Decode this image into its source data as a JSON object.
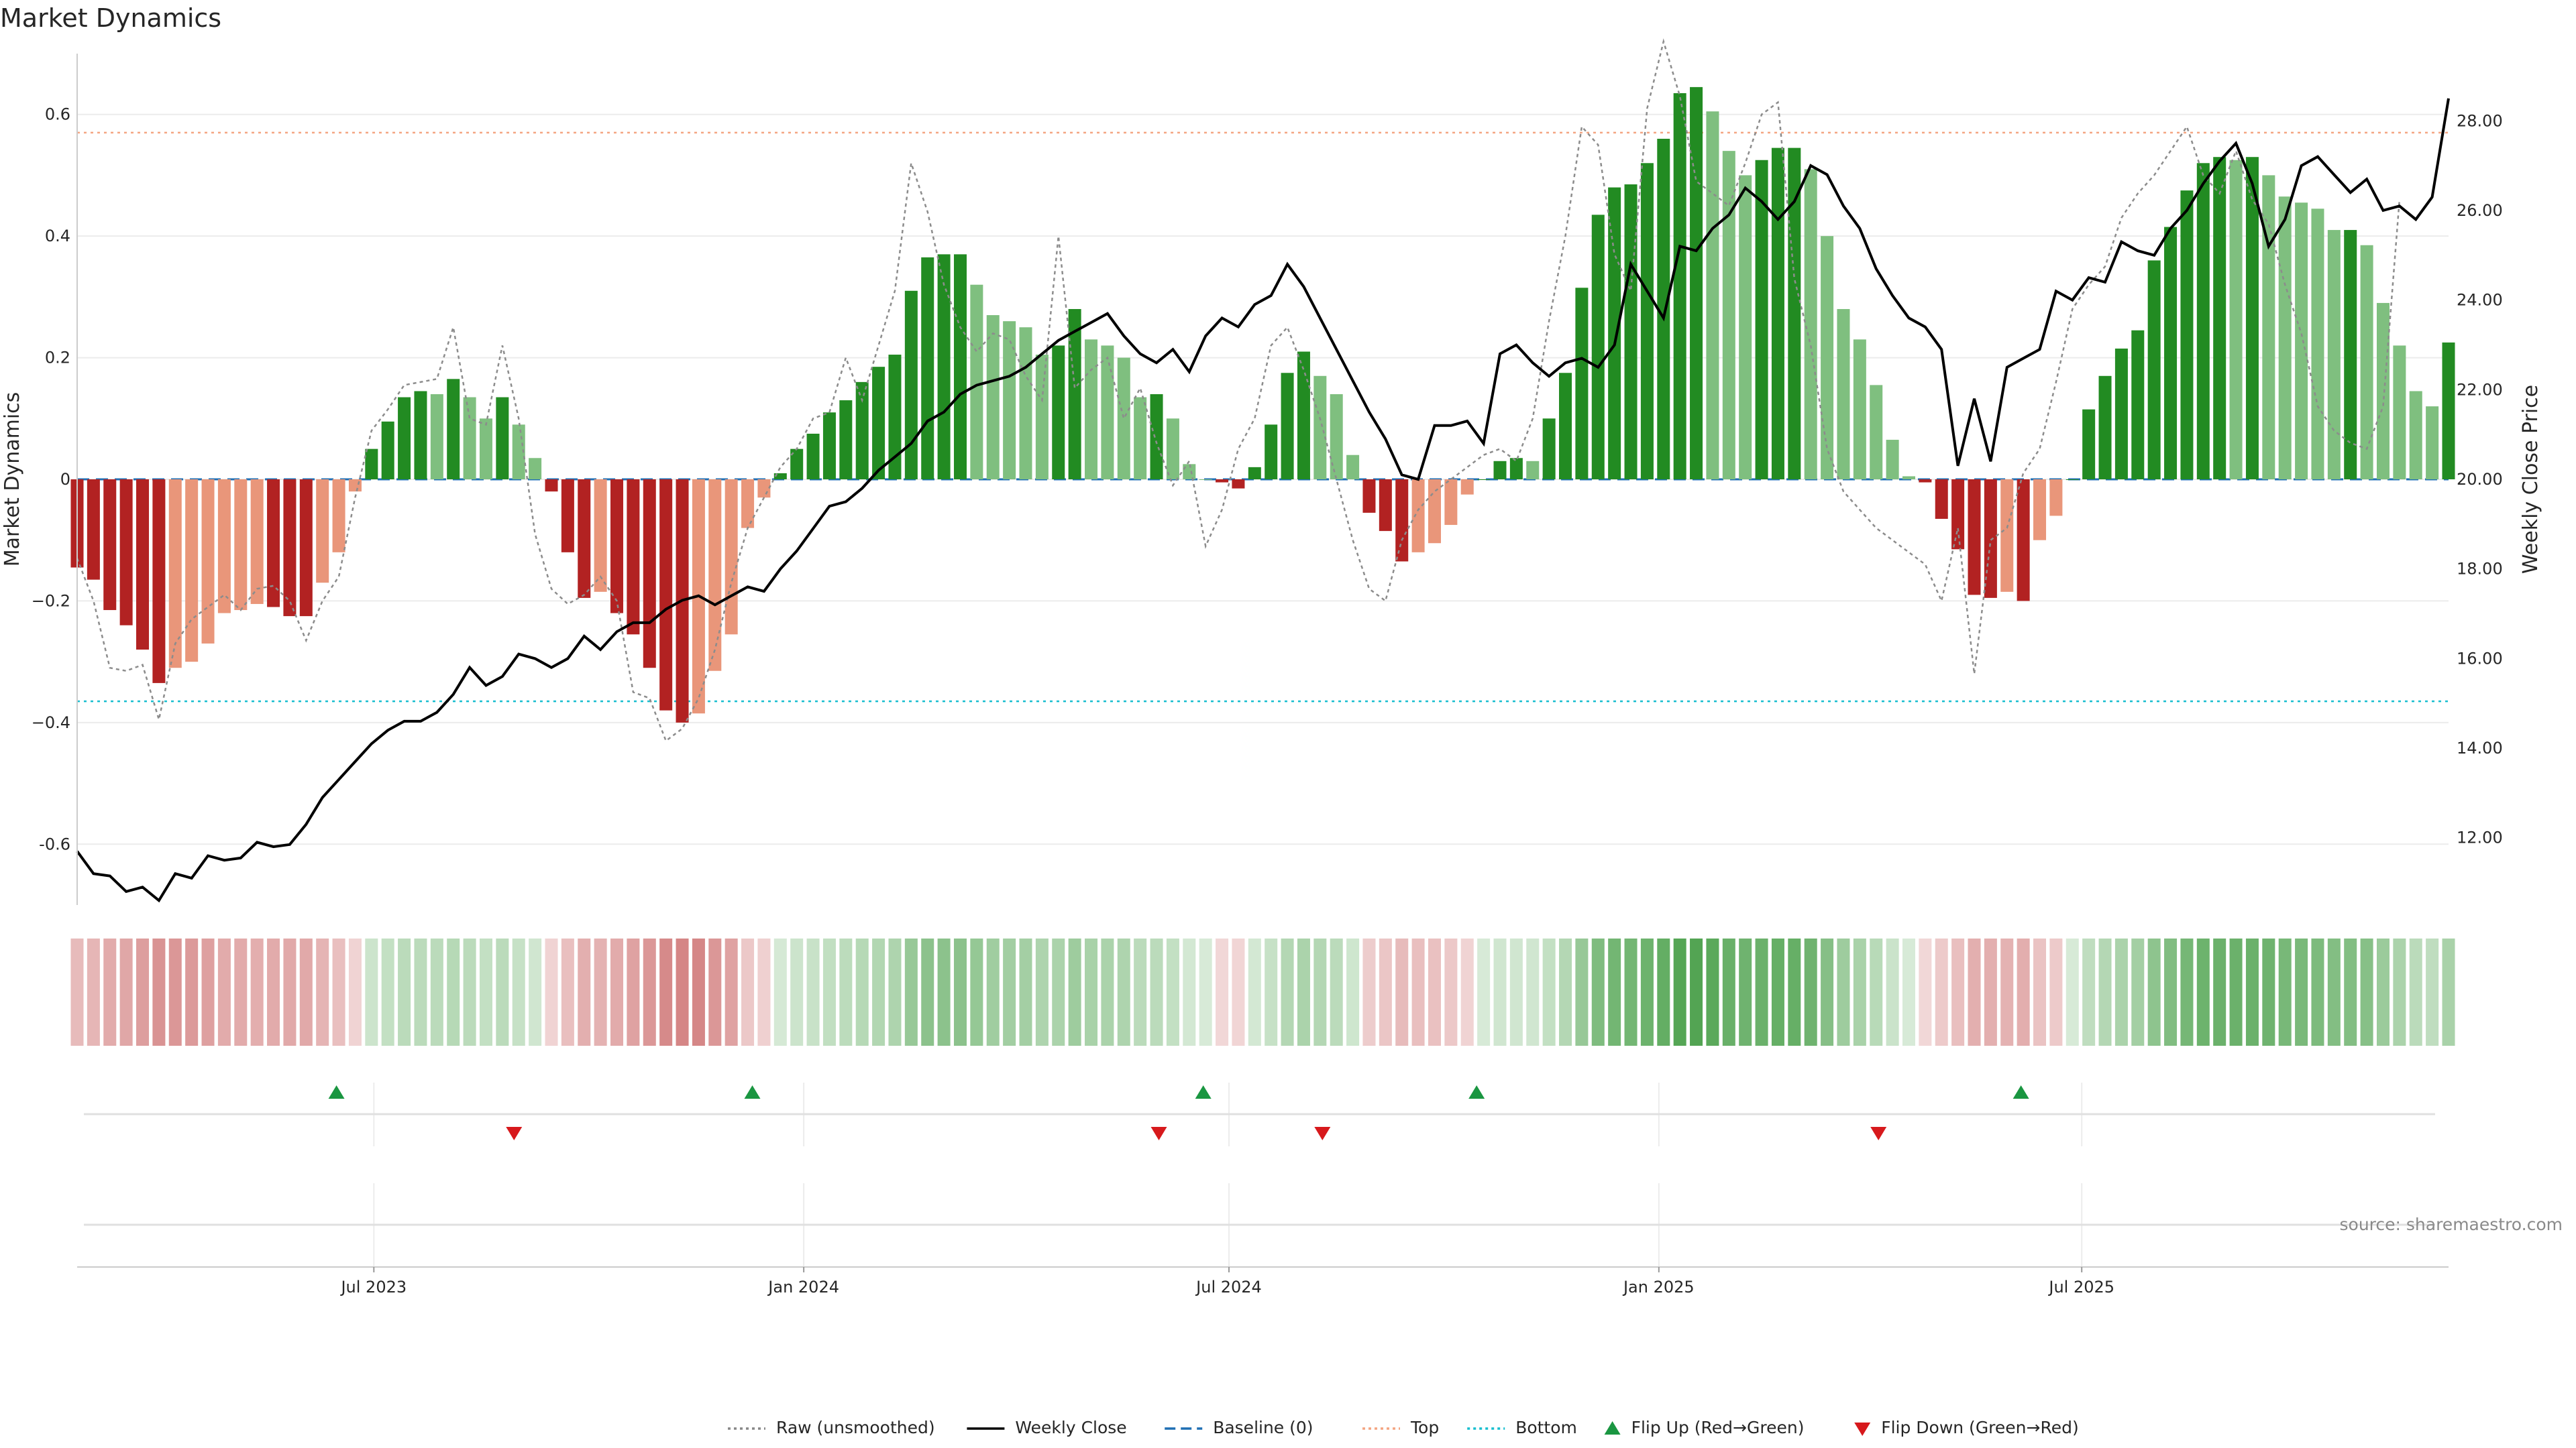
{
  "title": "Market Dynamics",
  "source": "source: sharemaestro.com",
  "legend": [
    {
      "key": "raw",
      "label": "Raw (unsmoothed)",
      "style": "dotted",
      "color": "#888888"
    },
    {
      "key": "close",
      "label": "Weekly Close",
      "style": "solid",
      "color": "#000000"
    },
    {
      "key": "baseline",
      "label": "Baseline (0)",
      "style": "dashed",
      "color": "#1f6fb4"
    },
    {
      "key": "top",
      "label": "Top",
      "style": "dotted",
      "color": "#f4a582"
    },
    {
      "key": "bottom",
      "label": "Bottom",
      "style": "dotted",
      "color": "#17becf"
    },
    {
      "key": "flip_up",
      "label": "Flip Up (Red→Green)",
      "style": "triangle-up",
      "color": "#1a9641"
    },
    {
      "key": "flip_down",
      "label": "Flip Down (Green→Red)",
      "style": "triangle-down",
      "color": "#d7191c"
    }
  ],
  "chart_data": {
    "type": "bar",
    "x_start": "2023-02-24",
    "x_step_days": 7,
    "x_ticks": [
      "Jul 2023",
      "Jan 2024",
      "Jul 2024",
      "Jan 2025",
      "Jul 2025"
    ],
    "y_left": {
      "label": "Market Dynamics",
      "range": [
        -0.7,
        0.7
      ],
      "ticks": [
        "-0.6",
        "−0.4",
        "−0.2",
        "0",
        "0.2",
        "0.4",
        "0.6"
      ],
      "tick_values": [
        -0.6,
        -0.4,
        -0.2,
        0,
        0.2,
        0.4,
        0.6
      ]
    },
    "y_right": {
      "label": "Weekly Close Price",
      "range": [
        10.5,
        29.5
      ],
      "ticks": [
        "12.00",
        "14.00",
        "16.00",
        "18.00",
        "20.00",
        "22.00",
        "24.00",
        "26.00",
        "28.00"
      ],
      "tick_values": [
        12,
        14,
        16,
        18,
        20,
        22,
        24,
        26,
        28
      ]
    },
    "top_level": 0.57,
    "bottom_level": -0.365,
    "baseline": 0,
    "grid": true,
    "legend_position": "bottom",
    "colors": {
      "strong_green": "#228b22",
      "light_green": "#7fbf7f",
      "strong_red": "#b22222",
      "light_red": "#e9967a"
    },
    "smoothed": [
      -0.145,
      -0.165,
      -0.215,
      -0.24,
      -0.28,
      -0.335,
      -0.31,
      -0.3,
      -0.27,
      -0.22,
      -0.215,
      -0.205,
      -0.21,
      -0.225,
      -0.225,
      -0.17,
      -0.12,
      -0.02,
      0.05,
      0.095,
      0.135,
      0.145,
      0.14,
      0.165,
      0.135,
      0.1,
      0.135,
      0.09,
      0.035,
      -0.02,
      -0.12,
      -0.195,
      -0.185,
      -0.22,
      -0.255,
      -0.31,
      -0.38,
      -0.4,
      -0.385,
      -0.315,
      -0.255,
      -0.08,
      -0.03,
      0.01,
      0.05,
      0.075,
      0.11,
      0.13,
      0.16,
      0.185,
      0.205,
      0.31,
      0.365,
      0.37,
      0.37,
      0.32,
      0.27,
      0.26,
      0.25,
      0.205,
      0.22,
      0.28,
      0.23,
      0.22,
      0.2,
      0.135,
      0.14,
      0.1,
      0.025,
      0.0,
      -0.005,
      -0.015,
      0.02,
      0.09,
      0.175,
      0.21,
      0.17,
      0.14,
      0.04,
      -0.055,
      -0.085,
      -0.135,
      -0.12,
      -0.105,
      -0.075,
      -0.025,
      0.0,
      0.03,
      0.035,
      0.03,
      0.1,
      0.175,
      0.315,
      0.435,
      0.48,
      0.485,
      0.52,
      0.56,
      0.635,
      0.645,
      0.605,
      0.54,
      0.5,
      0.525,
      0.545,
      0.545,
      0.51,
      0.4,
      0.28,
      0.23,
      0.155,
      0.065,
      0.005,
      -0.005,
      -0.065,
      -0.115,
      -0.19,
      -0.195,
      -0.185,
      -0.2,
      -0.1,
      -0.06,
      -0.0,
      0.115,
      0.17,
      0.215,
      0.245,
      0.36,
      0.415,
      0.475,
      0.52,
      0.53,
      0.525,
      0.53,
      0.5,
      0.465,
      0.455,
      0.445,
      0.41,
      0.41,
      0.385,
      0.29,
      0.22,
      0.145,
      0.12,
      0.225
    ],
    "raw": [
      -0.13,
      -0.2,
      -0.31,
      -0.315,
      -0.305,
      -0.395,
      -0.27,
      -0.23,
      -0.21,
      -0.19,
      -0.215,
      -0.18,
      -0.175,
      -0.2,
      -0.265,
      -0.2,
      -0.16,
      -0.03,
      0.08,
      0.115,
      0.155,
      0.16,
      0.165,
      0.25,
      0.1,
      0.09,
      0.22,
      0.1,
      -0.09,
      -0.18,
      -0.205,
      -0.19,
      -0.16,
      -0.2,
      -0.35,
      -0.36,
      -0.43,
      -0.41,
      -0.36,
      -0.28,
      -0.17,
      -0.08,
      -0.03,
      0.02,
      0.05,
      0.1,
      0.11,
      0.2,
      0.13,
      0.22,
      0.31,
      0.52,
      0.44,
      0.32,
      0.25,
      0.21,
      0.24,
      0.23,
      0.17,
      0.13,
      0.4,
      0.15,
      0.18,
      0.2,
      0.1,
      0.15,
      0.06,
      -0.01,
      0.03,
      -0.11,
      -0.05,
      0.05,
      0.1,
      0.22,
      0.25,
      0.18,
      0.1,
      0.0,
      -0.1,
      -0.18,
      -0.2,
      -0.1,
      -0.05,
      -0.02,
      0.0,
      0.02,
      0.04,
      0.05,
      0.03,
      0.1,
      0.26,
      0.4,
      0.58,
      0.55,
      0.37,
      0.31,
      0.61,
      0.72,
      0.63,
      0.49,
      0.47,
      0.45,
      0.52,
      0.6,
      0.62,
      0.33,
      0.22,
      0.05,
      -0.02,
      -0.05,
      -0.08,
      -0.1,
      -0.12,
      -0.14,
      -0.2,
      -0.08,
      -0.32,
      -0.1,
      -0.08,
      0.01,
      0.05,
      0.16,
      0.28,
      0.32,
      0.35,
      0.43,
      0.47,
      0.5,
      0.54,
      0.58,
      0.5,
      0.47,
      0.54,
      0.46,
      0.42,
      0.32,
      0.24,
      0.12,
      0.08,
      0.06,
      0.05,
      0.12,
      0.46
    ],
    "close": [
      11.7,
      11.2,
      11.15,
      10.8,
      10.9,
      10.6,
      11.2,
      11.1,
      11.6,
      11.5,
      11.55,
      11.9,
      11.8,
      11.85,
      12.3,
      12.9,
      13.3,
      13.7,
      14.1,
      14.4,
      14.6,
      14.6,
      14.8,
      15.2,
      15.8,
      15.4,
      15.6,
      16.1,
      16.0,
      15.8,
      16.0,
      16.5,
      16.2,
      16.6,
      16.8,
      16.8,
      17.1,
      17.3,
      17.4,
      17.2,
      17.4,
      17.6,
      17.5,
      18.0,
      18.4,
      18.9,
      19.4,
      19.5,
      19.8,
      20.2,
      20.5,
      20.8,
      21.3,
      21.5,
      21.9,
      22.1,
      22.2,
      22.3,
      22.5,
      22.8,
      23.1,
      23.3,
      23.5,
      23.7,
      23.2,
      22.8,
      22.6,
      22.9,
      22.4,
      23.2,
      23.6,
      23.4,
      23.9,
      24.1,
      24.8,
      24.3,
      23.6,
      22.9,
      22.2,
      21.5,
      20.9,
      20.1,
      20.0,
      21.2,
      21.2,
      21.3,
      20.8,
      22.8,
      23.0,
      22.6,
      22.3,
      22.6,
      22.7,
      22.5,
      23.0,
      24.8,
      24.2,
      23.6,
      25.2,
      25.1,
      25.6,
      25.9,
      26.5,
      26.2,
      25.8,
      26.2,
      27.0,
      26.8,
      26.1,
      25.6,
      24.7,
      24.1,
      23.6,
      23.4,
      22.9,
      20.3,
      21.8,
      20.4,
      22.5,
      22.7,
      22.9,
      24.2,
      24.0,
      24.5,
      24.4,
      25.3,
      25.1,
      25.0,
      25.6,
      26.0,
      26.6,
      27.1,
      27.5,
      26.6,
      25.2,
      25.8,
      27.0,
      27.2,
      26.8,
      26.4,
      26.7,
      26.0,
      26.1,
      25.8,
      26.3,
      28.5
    ],
    "flip_up_dates": [
      "2023-06-15",
      "2023-12-10",
      "2024-06-20",
      "2024-10-15",
      "2025-06-05"
    ],
    "flip_down_dates": [
      "2023-08-30",
      "2024-06-01",
      "2024-08-10",
      "2025-04-05"
    ]
  }
}
